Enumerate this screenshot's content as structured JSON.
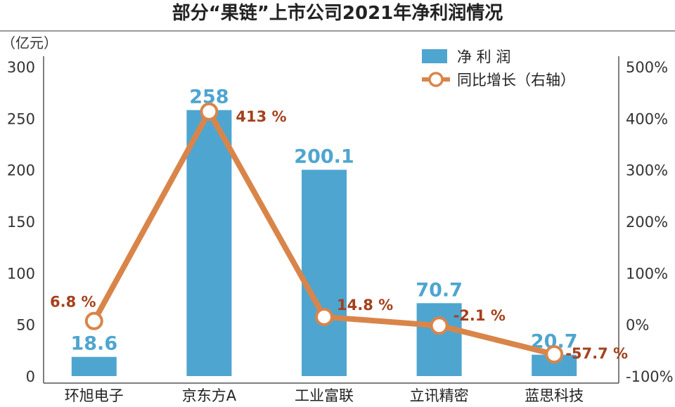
{
  "chart_data": {
    "type": "bar",
    "title": "部分“果链”上市公司2021年净利润情况",
    "ylabel": "（亿元）",
    "categories": [
      "环旭电子",
      "京东方A",
      "工业富联",
      "立讯精密",
      "蓝思科技"
    ],
    "series": [
      {
        "name": "净 利 润",
        "type": "bar",
        "axis": "left",
        "values": [
          18.6,
          258,
          200.1,
          70.7,
          20.7
        ],
        "labels": [
          "18.6",
          "258",
          "200.1",
          "70.7",
          "20.7"
        ]
      },
      {
        "name": "同比增长（右轴）",
        "type": "line",
        "axis": "right",
        "values": [
          6.8,
          413,
          14.8,
          -2.1,
          -57.7
        ],
        "labels": [
          "6.8 %",
          "413 %",
          "14.8 %",
          "-2.1 %",
          "-57.7 %"
        ]
      }
    ],
    "y_left": {
      "min": 0,
      "max": 300,
      "ticks": [
        "300",
        "250",
        "200",
        "150",
        "100",
        "50",
        "0"
      ]
    },
    "y_right": {
      "min": -100,
      "max": 500,
      "ticks": [
        "500%",
        "400%",
        "300%",
        "200%",
        "100%",
        "0%",
        "-100%"
      ]
    },
    "legend_position": "top-right",
    "grid": false
  },
  "colors": {
    "bar": "#4ea5d0",
    "line": "#d9854a",
    "line_label": "#a5401c",
    "bar_label": "#4ea5d0",
    "axis": "#555555"
  }
}
